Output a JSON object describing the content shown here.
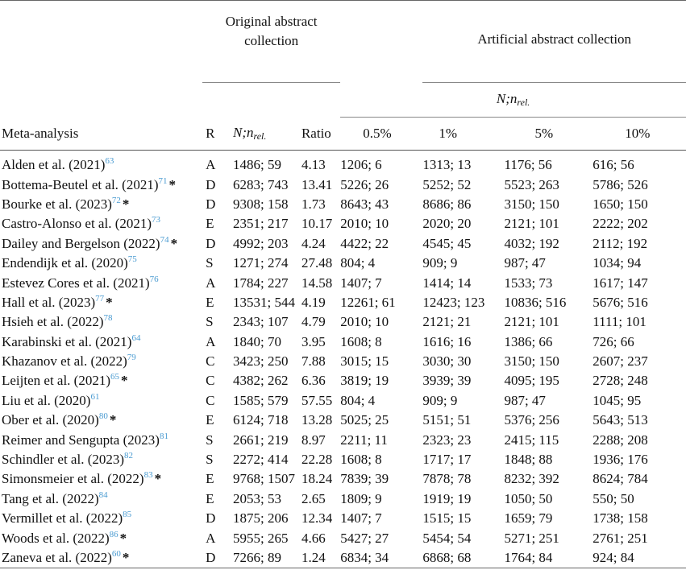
{
  "header": {
    "original_group": "Original abstract collection",
    "artificial_group": "Artificial abstract collection",
    "artificial_sub": "N;n",
    "rel_sub": "rel.",
    "columns": {
      "meta": "Meta-analysis",
      "r": "R",
      "n_main": "N;n",
      "n_sub": "rel.",
      "ratio": "Ratio",
      "p05": "0.5%",
      "p1": "1%",
      "p5": "5%",
      "p10": "10%"
    }
  },
  "rows": [
    {
      "name": "Alden et al. (2021)",
      "ref": "63",
      "star": "",
      "r": "A",
      "orig": "1486; 59",
      "ratio": "4.13",
      "p05": "1206; 6",
      "p1": "1313; 13",
      "p5": "1176; 56",
      "p10": "616; 56"
    },
    {
      "name": "Bottema-Beutel et al. (2021)",
      "ref": "71",
      "star": "*",
      "r": "D",
      "orig": "6283; 743",
      "ratio": "13.41",
      "p05": "5226; 26",
      "p1": "5252; 52",
      "p5": "5523; 263",
      "p10": "5786; 526"
    },
    {
      "name": "Bourke et al. (2023)",
      "ref": "72",
      "star": "*",
      "r": "D",
      "orig": "9308; 158",
      "ratio": "1.73",
      "p05": "8643; 43",
      "p1": "8686; 86",
      "p5": "3150; 150",
      "p10": "1650; 150"
    },
    {
      "name": "Castro-Alonso et al. (2021)",
      "ref": "73",
      "star": "",
      "r": "E",
      "orig": "2351; 217",
      "ratio": "10.17",
      "p05": "2010; 10",
      "p1": "2020; 20",
      "p5": "2121; 101",
      "p10": "2222; 202"
    },
    {
      "name": "Dailey and Bergelson (2022)",
      "ref": "74",
      "star": "*",
      "r": "D",
      "orig": "4992; 203",
      "ratio": "4.24",
      "p05": "4422; 22",
      "p1": "4545; 45",
      "p5": "4032; 192",
      "p10": "2112; 192"
    },
    {
      "name": "Endendijk et al. (2020)",
      "ref": "75",
      "star": "",
      "r": "S",
      "orig": "1271; 274",
      "ratio": "27.48",
      "p05": "804; 4",
      "p1": "909; 9",
      "p5": "987; 47",
      "p10": "1034; 94"
    },
    {
      "name": "Estevez Cores et al. (2021)",
      "ref": "76",
      "star": "",
      "r": "A",
      "orig": "1784; 227",
      "ratio": "14.58",
      "p05": "1407; 7",
      "p1": "1414; 14",
      "p5": "1533; 73",
      "p10": "1617; 147"
    },
    {
      "name": "Hall et al. (2023)",
      "ref": "77",
      "star": "*",
      "r": "E",
      "orig": "13531; 544",
      "ratio": "4.19",
      "p05": "12261; 61",
      "p1": "12423; 123",
      "p5": "10836; 516",
      "p10": "5676; 516"
    },
    {
      "name": "Hsieh et al. (2022)",
      "ref": "78",
      "star": "",
      "r": "S",
      "orig": "2343; 107",
      "ratio": "4.79",
      "p05": "2010; 10",
      "p1": "2121; 21",
      "p5": "2121; 101",
      "p10": "1111; 101"
    },
    {
      "name": "Karabinski et al. (2021)",
      "ref": "64",
      "star": "",
      "r": "A",
      "orig": "1840; 70",
      "ratio": "3.95",
      "p05": "1608; 8",
      "p1": "1616; 16",
      "p5": "1386; 66",
      "p10": "726; 66"
    },
    {
      "name": "Khazanov et al. (2022)",
      "ref": "79",
      "star": "",
      "r": "C",
      "orig": "3423; 250",
      "ratio": "7.88",
      "p05": "3015; 15",
      "p1": "3030; 30",
      "p5": "3150; 150",
      "p10": "2607; 237"
    },
    {
      "name": "Leijten et al. (2021)",
      "ref": "65",
      "star": "*",
      "r": "C",
      "orig": "4382; 262",
      "ratio": "6.36",
      "p05": "3819; 19",
      "p1": "3939; 39",
      "p5": "4095; 195",
      "p10": "2728; 248"
    },
    {
      "name": "Liu et al. (2020)",
      "ref": "61",
      "star": "",
      "r": "C",
      "orig": "1585; 579",
      "ratio": "57.55",
      "p05": "804; 4",
      "p1": "909; 9",
      "p5": "987; 47",
      "p10": "1045; 95"
    },
    {
      "name": "Ober et al. (2020)",
      "ref": "80",
      "star": "*",
      "r": "E",
      "orig": "6124; 718",
      "ratio": "13.28",
      "p05": "5025; 25",
      "p1": "5151; 51",
      "p5": "5376; 256",
      "p10": "5643; 513"
    },
    {
      "name": "Reimer and Sengupta (2023)",
      "ref": "81",
      "star": "",
      "r": "S",
      "orig": "2661; 219",
      "ratio": "8.97",
      "p05": "2211; 11",
      "p1": "2323; 23",
      "p5": "2415; 115",
      "p10": "2288; 208"
    },
    {
      "name": "Schindler et al. (2023)",
      "ref": "82",
      "star": "",
      "r": "S",
      "orig": "2272; 414",
      "ratio": "22.28",
      "p05": "1608; 8",
      "p1": "1717; 17",
      "p5": "1848; 88",
      "p10": "1936; 176"
    },
    {
      "name": "Simonsmeier et al. (2022)",
      "ref": "83",
      "star": "*",
      "r": "E",
      "orig": "9768; 1507",
      "ratio": "18.24",
      "p05": "7839; 39",
      "p1": "7878; 78",
      "p5": "8232; 392",
      "p10": "8624; 784"
    },
    {
      "name": "Tang et al. (2022)",
      "ref": "84",
      "star": "",
      "r": "E",
      "orig": "2053; 53",
      "ratio": "2.65",
      "p05": "1809; 9",
      "p1": "1919; 19",
      "p5": "1050; 50",
      "p10": "550; 50"
    },
    {
      "name": "Vermillet et al. (2022)",
      "ref": "85",
      "star": "",
      "r": "D",
      "orig": "1875; 206",
      "ratio": "12.34",
      "p05": "1407; 7",
      "p1": "1515; 15",
      "p5": "1659; 79",
      "p10": "1738; 158"
    },
    {
      "name": "Woods et al. (2022)",
      "ref": "86",
      "star": "*",
      "r": "A",
      "orig": "5955; 265",
      "ratio": "4.66",
      "p05": "5427; 27",
      "p1": "5454; 54",
      "p5": "5271; 251",
      "p10": "2761; 251"
    },
    {
      "name": "Zaneva et al. (2022)",
      "ref": "60",
      "star": "*",
      "r": "D",
      "orig": "7266; 89",
      "ratio": "1.24",
      "p05": "6834; 34",
      "p1": "6868; 68",
      "p5": "1764; 84",
      "p10": "924; 84"
    }
  ]
}
